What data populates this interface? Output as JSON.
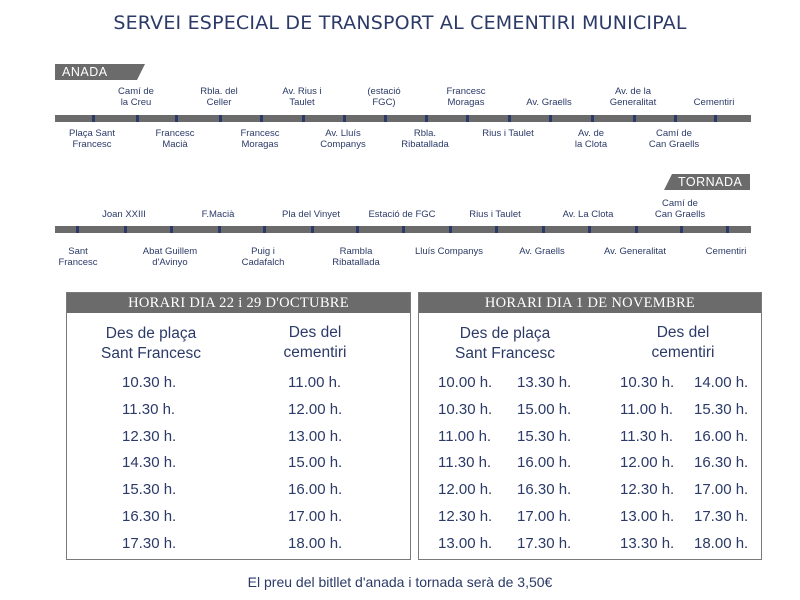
{
  "title": "SERVEI ESPECIAL DE TRANSPORT AL CEMENTIRI MUNICIPAL",
  "anada": {
    "label": "ANADA",
    "stops_above": [
      "Camí de\nla Creu",
      "Rbla. del\nCeller",
      "Av. Rius i\nTaulet",
      "(estació\nFGC)",
      "Francesc\nMoragas",
      "Av. Graells",
      "Av. de la\nGeneralitat",
      "Cementiri"
    ],
    "stops_below": [
      "Plaça Sant\nFrancesc",
      "Francesc\nMacià",
      "Francesc\nMoragas",
      "Av. Lluís\nCompanys",
      "Rbla.\nRibatallada",
      "Rius i Taulet",
      "Av. de\nla Clota",
      "Camí de\nCan Graells"
    ]
  },
  "tornada": {
    "label": "TORNADA",
    "stops_above": [
      "Joan XXIII",
      "F.Macià",
      "Pla del Vinyet",
      "Estació de FGC",
      "Rius i Taulet",
      "Av. La Clota",
      "Camí de\nCan Graells"
    ],
    "stops_below": [
      "Sant\nFrancesc",
      "Abat Guillem\nd'Avinyo",
      "Puig i\nCadafalch",
      "Rambla\nRibatallada",
      "Lluís Companys",
      "Av. Graells",
      "Av. Generalitat",
      "Cementiri"
    ]
  },
  "schedule_oct": {
    "header": "HORARI DIA 22 i 29 D'OCTUBRE",
    "col1_title": "Des de plaça\nSant Francesc",
    "col2_title": "Des del\ncementiri",
    "col1_times": [
      "10.30 h.",
      "11.30 h.",
      "12.30 h.",
      "14.30 h.",
      "15.30 h.",
      "16.30 h.",
      "17.30 h."
    ],
    "col2_times": [
      "11.00 h.",
      "12.00 h.",
      "13.00 h.",
      "15.00 h.",
      "16.00 h.",
      "17.00 h.",
      "18.00 h."
    ]
  },
  "schedule_nov": {
    "header": "HORARI DIA 1 DE NOVEMBRE",
    "col1_title": "Des de plaça\nSant Francesc",
    "col2_title": "Des del\ncementiri",
    "col1a_times": [
      "10.00 h.",
      "10.30 h.",
      "11.00 h.",
      "11.30 h.",
      "12.00 h.",
      "12.30 h.",
      "13.00 h."
    ],
    "col1b_times": [
      "13.30 h.",
      "15.00 h.",
      "15.30 h.",
      "16.00 h.",
      "16.30 h.",
      "17.00 h.",
      "17.30 h."
    ],
    "col2a_times": [
      "10.30 h.",
      "11.00 h.",
      "11.30 h.",
      "12.00 h.",
      "12.30 h.",
      "13.00 h.",
      "13.30 h."
    ],
    "col2b_times": [
      "14.00 h.",
      "15.30 h.",
      "16.00 h.",
      "16.30 h.",
      "17.00 h.",
      "17.30 h.",
      "18.00 h."
    ]
  },
  "price_note": "El preu del bitllet d'anada i tornada serà de 3,50€",
  "colors": {
    "text": "#2b3a67",
    "bar": "#6b6b6b"
  }
}
